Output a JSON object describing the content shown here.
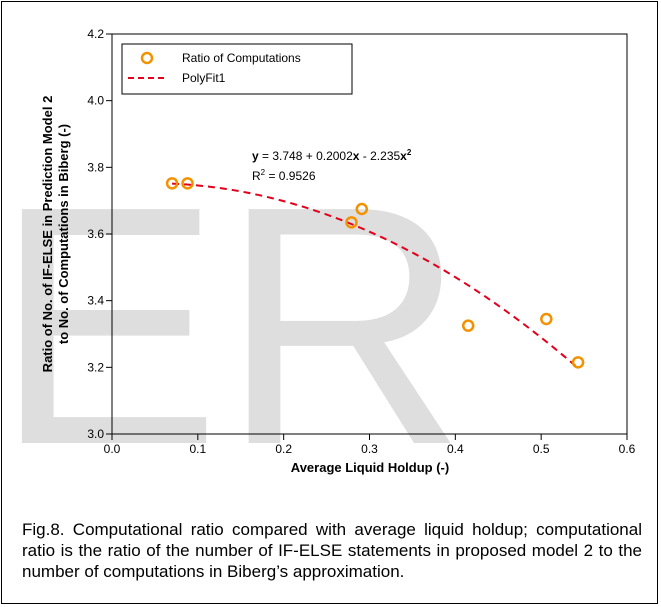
{
  "chart_data": {
    "type": "scatter",
    "xlabel": "Average Liquid Holdup (-)",
    "ylabel_line1": "Ratio of No. of IF-ELSE in Prediction Model 2",
    "ylabel_line2": "to No. of Computations in Biberg (-)",
    "xlim": [
      0.0,
      0.6
    ],
    "ylim": [
      3.0,
      4.2
    ],
    "x_ticks": [
      "0.0",
      "0.1",
      "0.2",
      "0.3",
      "0.4",
      "0.5",
      "0.6"
    ],
    "y_ticks": [
      "3.0",
      "3.2",
      "3.4",
      "3.6",
      "3.8",
      "4.0",
      "4.2"
    ],
    "grid": false,
    "legend_position": "top-left",
    "series": [
      {
        "name": "Ratio of Computations",
        "kind": "scatter",
        "marker": "open-circle",
        "color": "#f39200",
        "x": [
          0.07,
          0.088,
          0.279,
          0.291,
          0.415,
          0.506,
          0.543
        ],
        "y": [
          3.752,
          3.752,
          3.635,
          3.675,
          3.325,
          3.345,
          3.215
        ]
      },
      {
        "name": "PolyFit1",
        "kind": "line",
        "style": "dashed",
        "color": "#e3001b",
        "coefficients": [
          3.748,
          0.2002,
          -2.235
        ],
        "x_range": [
          0.07,
          0.543
        ]
      }
    ],
    "annotation": {
      "eq_y": "y",
      "eq_mid1": " = 3.748 + 0.2002",
      "eq_x1": "x",
      "eq_mid2": " - 2.235",
      "eq_x2": "x",
      "eq_sup": "2",
      "r_label": "R",
      "r_sup": "2",
      "r_value": " = 0.9526"
    }
  },
  "watermark": "ER",
  "caption": "Fig.8. Computational ratio compared with average liquid holdup; computational ratio is the ratio of the number of IF-ELSE statements in proposed model 2 to the number of computations in Biberg’s approximation."
}
